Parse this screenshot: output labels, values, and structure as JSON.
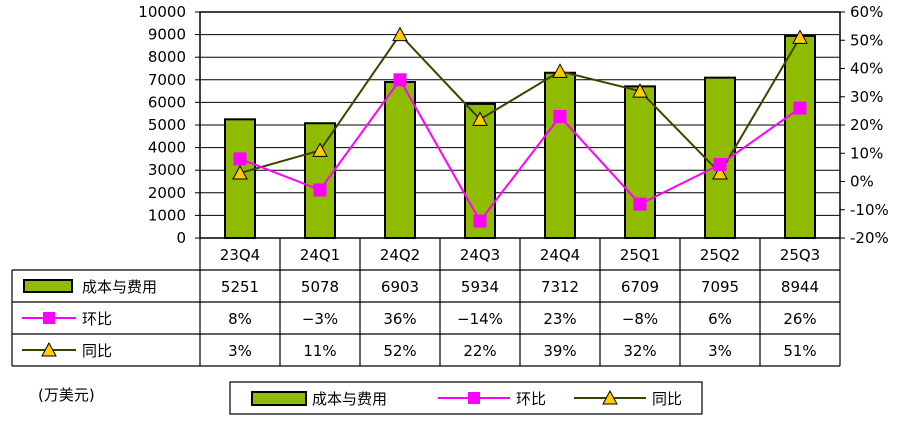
{
  "chart_data": {
    "type": "bar+line",
    "categories": [
      "23Q4",
      "24Q1",
      "24Q2",
      "24Q3",
      "24Q4",
      "25Q1",
      "25Q2",
      "25Q3"
    ],
    "left_axis": {
      "ylim": [
        0,
        10000
      ],
      "ticks": [
        "0",
        "1000",
        "2000",
        "3000",
        "4000",
        "5000",
        "6000",
        "7000",
        "8000",
        "9000",
        "10000"
      ]
    },
    "right_axis": {
      "ylim": [
        -20,
        60
      ],
      "ticks": [
        "-20%",
        "-10%",
        "0%",
        "10%",
        "20%",
        "30%",
        "40%",
        "50%",
        "60%"
      ]
    },
    "series": [
      {
        "name": "成本与费用",
        "type": "bar",
        "axis": "left",
        "color": "#8fbc00",
        "values": [
          5251,
          5078,
          6903,
          5934,
          7312,
          6709,
          7095,
          8944
        ],
        "labels": [
          "5251",
          "5078",
          "6903",
          "5934",
          "7312",
          "6709",
          "7095",
          "8944"
        ]
      },
      {
        "name": "环比",
        "type": "line",
        "axis": "right",
        "color": "#ff00ff",
        "marker": "square",
        "values": [
          8,
          -3,
          36,
          -14,
          23,
          -8,
          6,
          26
        ],
        "labels": [
          "8%",
          "−3%",
          "36%",
          "−14%",
          "23%",
          "−8%",
          "6%",
          "26%"
        ]
      },
      {
        "name": "同比",
        "type": "line",
        "axis": "right",
        "color": "#404000",
        "marker": "triangle",
        "marker_fill": "#ffcc00",
        "values": [
          3,
          11,
          52,
          22,
          39,
          32,
          3,
          51
        ],
        "labels": [
          "3%",
          "11%",
          "52%",
          "22%",
          "39%",
          "32%",
          "3%",
          "51%"
        ]
      }
    ],
    "unit_label": "(万美元)",
    "grid": true,
    "legend": "bottom-center"
  }
}
